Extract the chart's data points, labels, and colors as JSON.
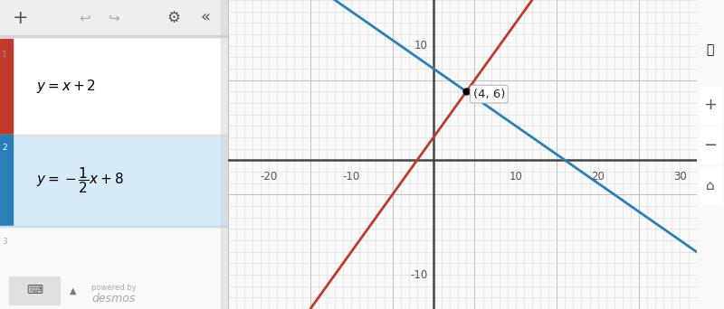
{
  "eq1_slope": 1,
  "eq1_intercept": 2,
  "eq2_slope": -0.5,
  "eq2_intercept": 8,
  "intersection": [
    4,
    6
  ],
  "x_min": -25,
  "x_max": 32,
  "y_min": -13,
  "y_max": 14,
  "color_line1": "#c0392b",
  "color_line2": "#2980b9",
  "grid_minor_color": "#d8d8d8",
  "grid_major_color": "#c0c0c0",
  "axis_color": "#444444",
  "graph_bg": "#f9f9f9",
  "panel_bg": "#ffffff",
  "toolbar_bg": "#eeeeee",
  "entry2_bg": "#d6eaf8",
  "accent1_color": "#c0392b",
  "accent2_color": "#2980b9",
  "panel_right_border": "#cccccc",
  "intersection_label": "(4, 6)",
  "tick_label_color": "#555555",
  "tick_fontsize": 8.5,
  "line_width": 2.0,
  "x_tick_step": 10,
  "y_tick_step": 10,
  "x_label_ticks": [
    -20,
    -10,
    10,
    20,
    30
  ],
  "y_label_ticks": [
    -10,
    10
  ],
  "desmos_text_color": "#aaaaaa"
}
